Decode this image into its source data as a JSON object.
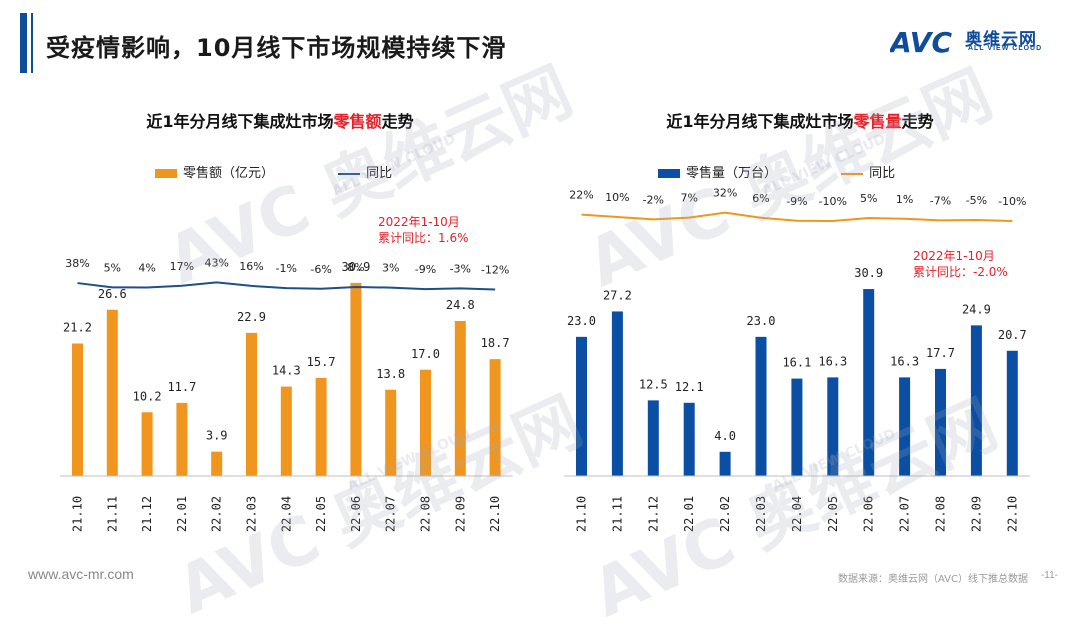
{
  "header": {
    "title": "受疫情影响，10月线下市场规模持续下滑",
    "logo_text": "奥维云网",
    "logo_sub": "ALL VIEW CLOUD",
    "logo_mark": "AVC"
  },
  "footer": {
    "url": "www.avc-mr.com",
    "source": "数据来源：奥维云网（AVC）线下推总数据",
    "page": "-11-"
  },
  "colors": {
    "accent": "#0f4c9a",
    "orange": "#f0961e",
    "blue": "#0a4fa3",
    "line_left": "#1f4e8c",
    "line_right": "#f0961e",
    "highlight": "#e8202a"
  },
  "chart_data": [
    {
      "type": "bar",
      "title_prefix": "近1年分月线下集成灶市场",
      "title_highlight": "零售额",
      "title_suffix": "走势",
      "categories": [
        "21.10",
        "21.11",
        "21.12",
        "22.01",
        "22.02",
        "22.03",
        "22.04",
        "22.05",
        "22.06",
        "22.07",
        "22.08",
        "22.09",
        "22.10"
      ],
      "series": [
        {
          "name": "零售额（亿元）",
          "type": "bar",
          "values": [
            21.2,
            26.6,
            10.2,
            11.7,
            3.9,
            22.9,
            14.3,
            15.7,
            30.9,
            13.8,
            17.0,
            24.8,
            18.7
          ],
          "labels": [
            "21.2",
            "26.6",
            "10.2",
            "11.7",
            "3.9",
            "22.9",
            "14.3",
            "15.7",
            "30.9",
            "13.8",
            "17.0",
            "24.8",
            "18.7"
          ]
        },
        {
          "name": "同比",
          "type": "line",
          "values": [
            38,
            5,
            4,
            17,
            43,
            16,
            -1,
            -6,
            8,
            3,
            -9,
            -3,
            -12
          ],
          "labels": [
            "38%",
            "5%",
            "4%",
            "17%",
            "43%",
            "16%",
            "-1%",
            "-6%",
            "8%",
            "3%",
            "-9%",
            "-3%",
            "-12%"
          ]
        }
      ],
      "annotation": [
        "2022年1-10月",
        "累计同比：1.6%"
      ],
      "legend": "top"
    },
    {
      "type": "bar",
      "title_prefix": "近1年分月线下集成灶市场",
      "title_highlight": "零售量",
      "title_suffix": "走势",
      "categories": [
        "21.10",
        "21.11",
        "21.12",
        "22.01",
        "22.02",
        "22.03",
        "22.04",
        "22.05",
        "22.06",
        "22.07",
        "22.08",
        "22.09",
        "22.10"
      ],
      "series": [
        {
          "name": "零售量（万台）",
          "type": "bar",
          "values": [
            23.0,
            27.2,
            12.5,
            12.1,
            4.0,
            23.0,
            16.1,
            16.3,
            30.9,
            16.3,
            17.7,
            24.9,
            20.7
          ],
          "labels": [
            "23.0",
            "27.2",
            "12.5",
            "12.1",
            "4.0",
            "23.0",
            "16.1",
            "16.3",
            "30.9",
            "16.3",
            "17.7",
            "24.9",
            "20.7"
          ]
        },
        {
          "name": "同比",
          "type": "line",
          "values": [
            22,
            10,
            -2,
            7,
            32,
            6,
            -9,
            -10,
            5,
            1,
            -7,
            -5,
            -10
          ],
          "labels": [
            "22%",
            "10%",
            "-2%",
            "7%",
            "32%",
            "6%",
            "-9%",
            "-10%",
            "5%",
            "1%",
            "-7%",
            "-5%",
            "-10%"
          ]
        }
      ],
      "annotation": [
        "2022年1-10月",
        "累计同比：-2.0%"
      ],
      "legend": "top"
    }
  ]
}
